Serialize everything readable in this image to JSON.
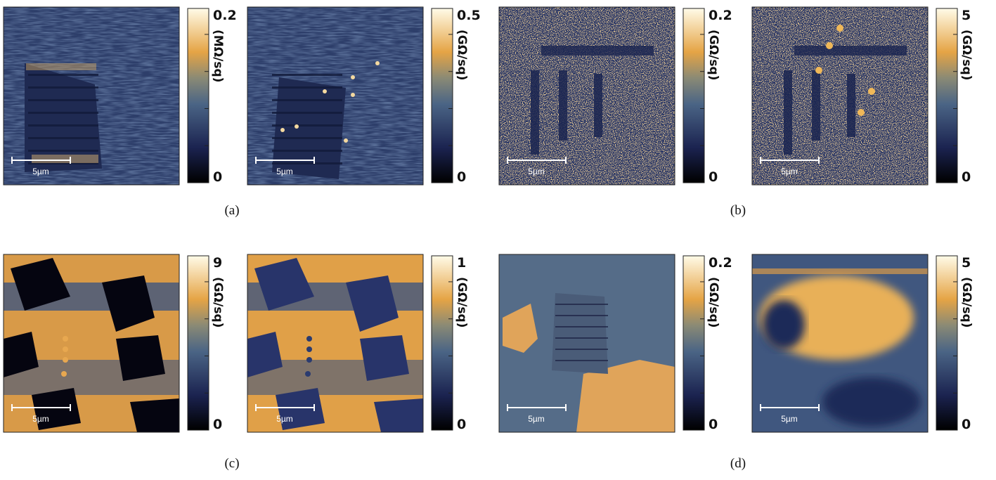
{
  "panels": [
    {
      "label": "(a)",
      "images": [
        {
          "scale_bar": "5µm",
          "colorbar": {
            "max": "0.2",
            "min": "0",
            "unit": "(MΩ/sq)"
          }
        },
        {
          "scale_bar": "5µm",
          "colorbar": {
            "max": "0.5",
            "min": "0",
            "unit": "(GΩ/sq)"
          }
        }
      ]
    },
    {
      "label": "(b)",
      "images": [
        {
          "scale_bar": "5µm",
          "colorbar": {
            "max": "0.2",
            "min": "0",
            "unit": "(GΩ/sq)"
          }
        },
        {
          "scale_bar": "5µm",
          "colorbar": {
            "max": "5",
            "min": "0",
            "unit": "(GΩ/sq)"
          }
        }
      ]
    },
    {
      "label": "(c)",
      "images": [
        {
          "scale_bar": "5µm",
          "colorbar": {
            "max": "9",
            "min": "0",
            "unit": "(GΩ/sq)"
          }
        },
        {
          "scale_bar": "5µm",
          "colorbar": {
            "max": "1",
            "min": "0",
            "unit": "(GΩ/sq)"
          }
        }
      ]
    },
    {
      "label": "(d)",
      "images": [
        {
          "scale_bar": "5µm",
          "colorbar": {
            "max": "0.2",
            "min": "0",
            "unit": "(GΩ/sq)"
          }
        },
        {
          "scale_bar": "5µm",
          "colorbar": {
            "max": "5",
            "min": "0",
            "unit": "(GΩ/sq)"
          }
        }
      ]
    }
  ]
}
